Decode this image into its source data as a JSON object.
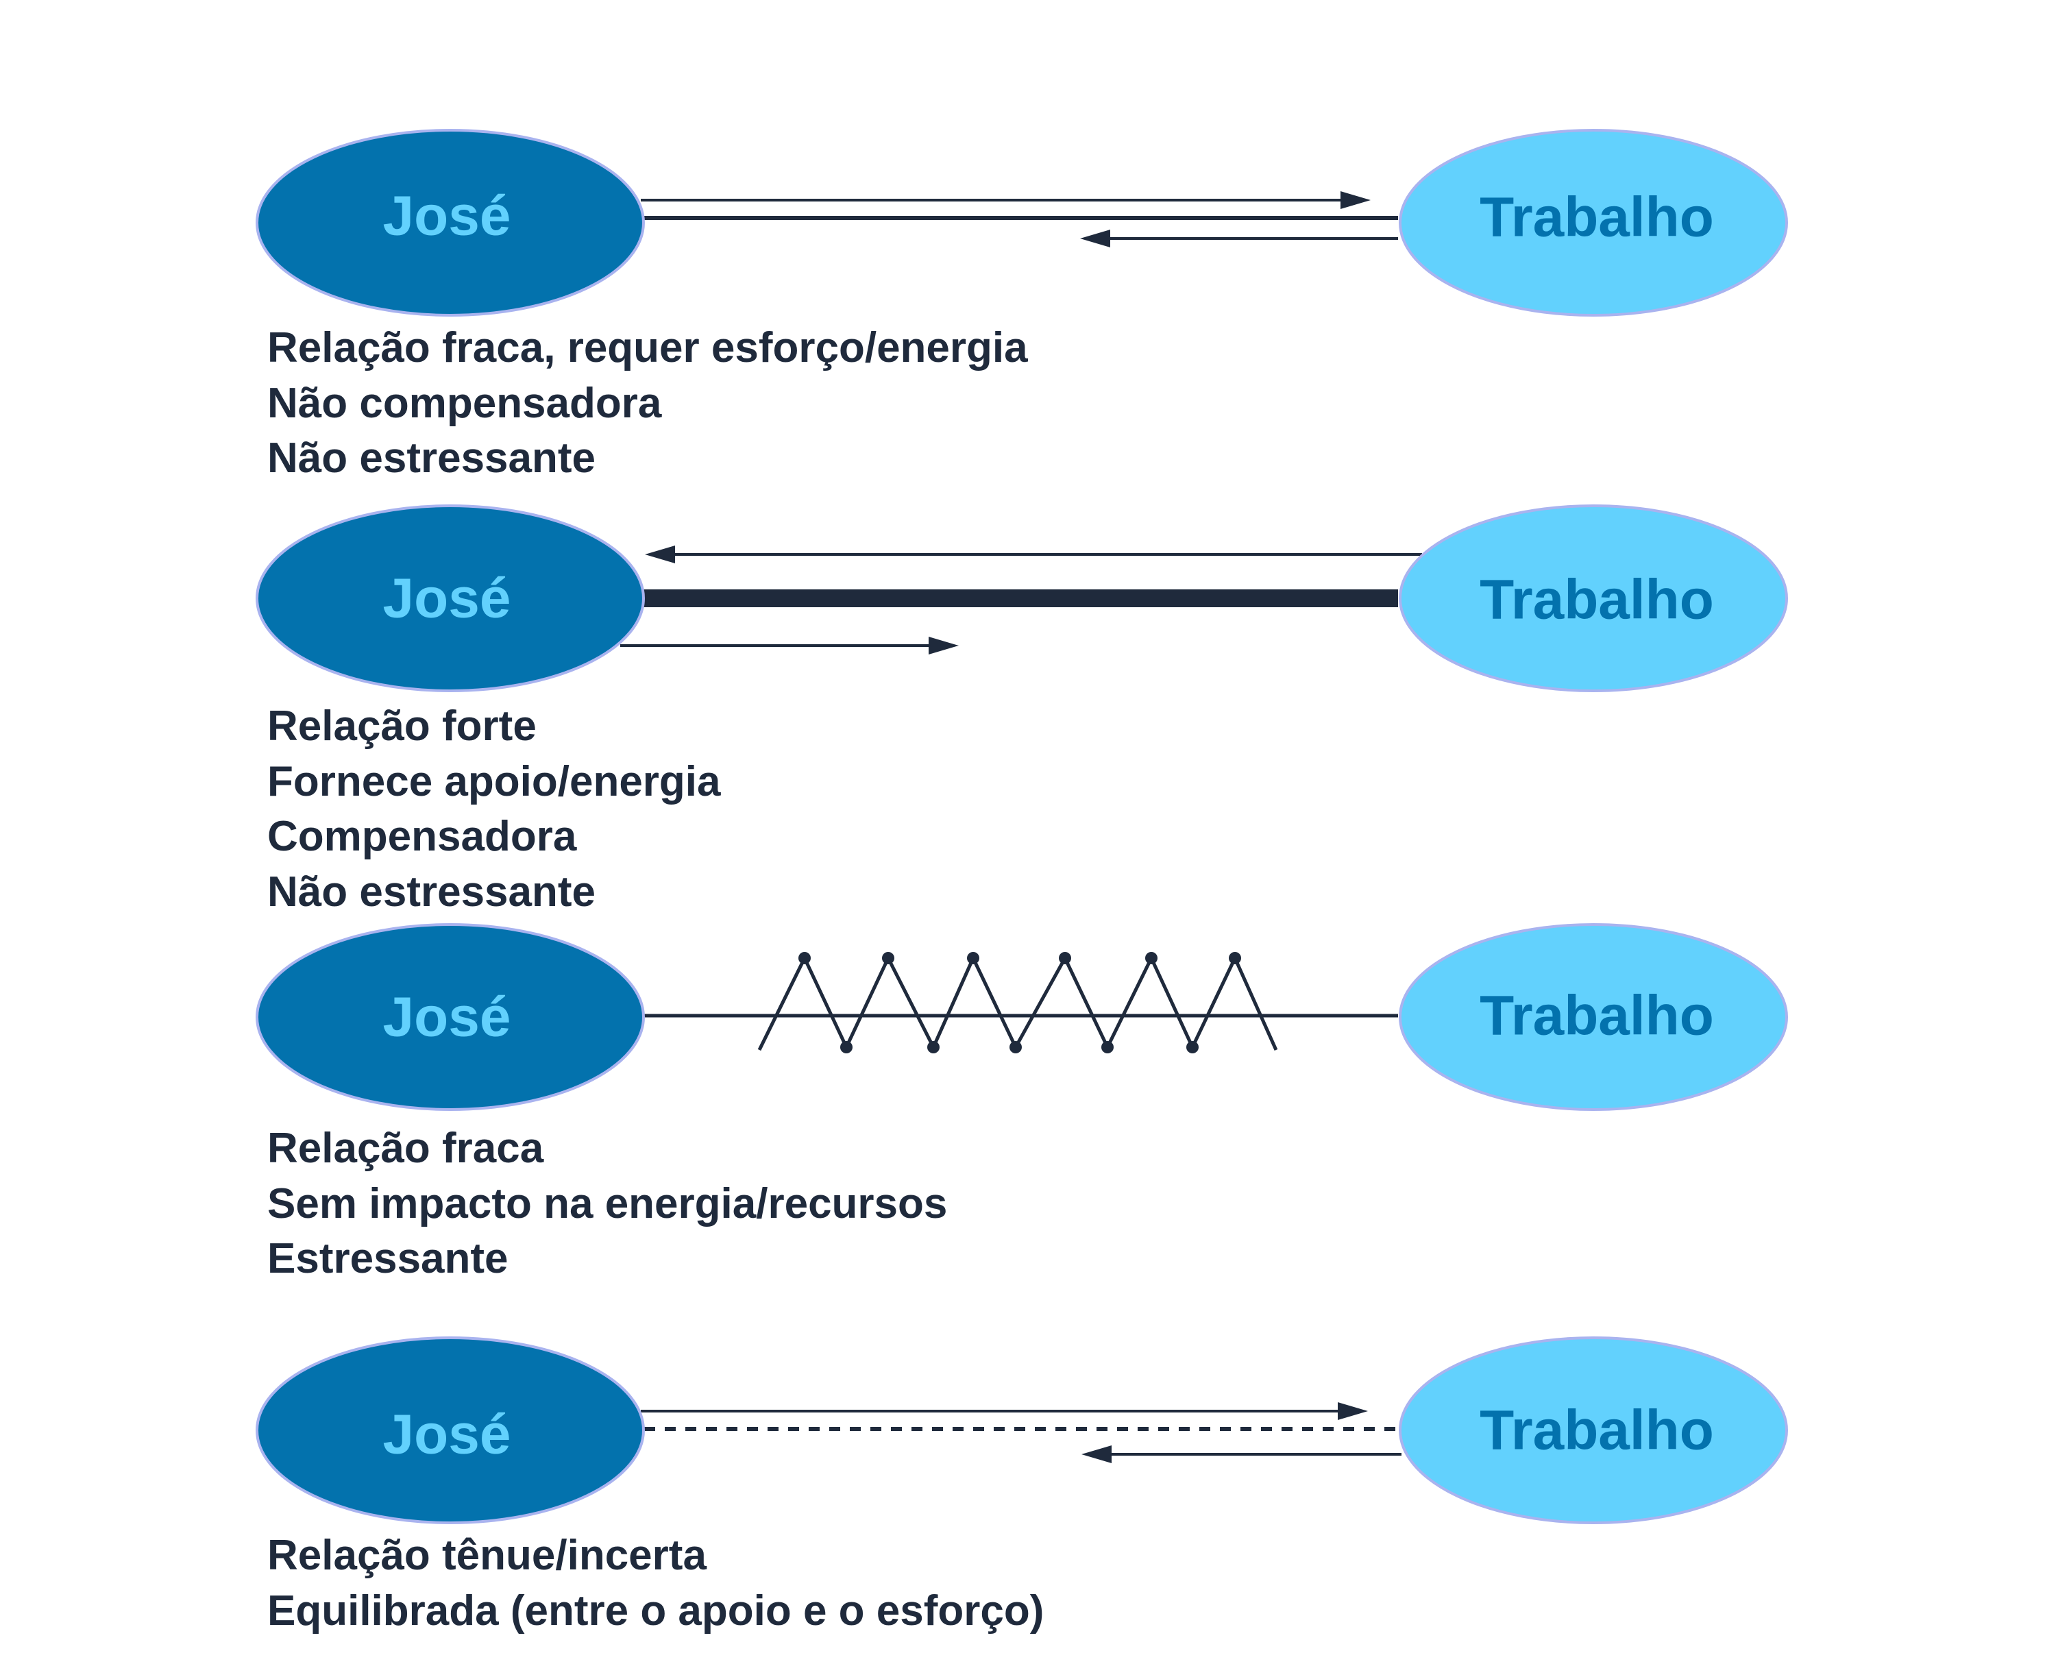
{
  "colors": {
    "jose_fill": "#0372ad",
    "jose_text": "#62d1fd",
    "trabalho_fill": "#62d1fd",
    "trabalho_text": "#0372ad",
    "ellipse_stroke": "#a9b3ef",
    "line": "#1f2a3c",
    "text": "#1f2a3c"
  },
  "relations": [
    {
      "person": "José",
      "target": "Trabalho",
      "link_style": "thin-line",
      "arrows": "both-directions",
      "description": [
        "Relação fraca, requer esforço/energia",
        "Não compensadora",
        "Não estressante"
      ]
    },
    {
      "person": "José",
      "target": "Trabalho",
      "link_style": "thick-line",
      "arrows": "both-directions",
      "description": [
        "Relação forte",
        "Fornece apoio/energia",
        "Compensadora",
        "Não estressante"
      ]
    },
    {
      "person": "José",
      "target": "Trabalho",
      "link_style": "zigzag-line",
      "arrows": "none",
      "description": [
        "Relação fraca",
        "Sem impacto na energia/recursos",
        "Estressante"
      ]
    },
    {
      "person": "José",
      "target": "Trabalho",
      "link_style": "dashed-line",
      "arrows": "both-directions",
      "description": [
        "Relação tênue/incerta",
        "Equilibrada (entre o apoio e o esforço)"
      ]
    }
  ]
}
